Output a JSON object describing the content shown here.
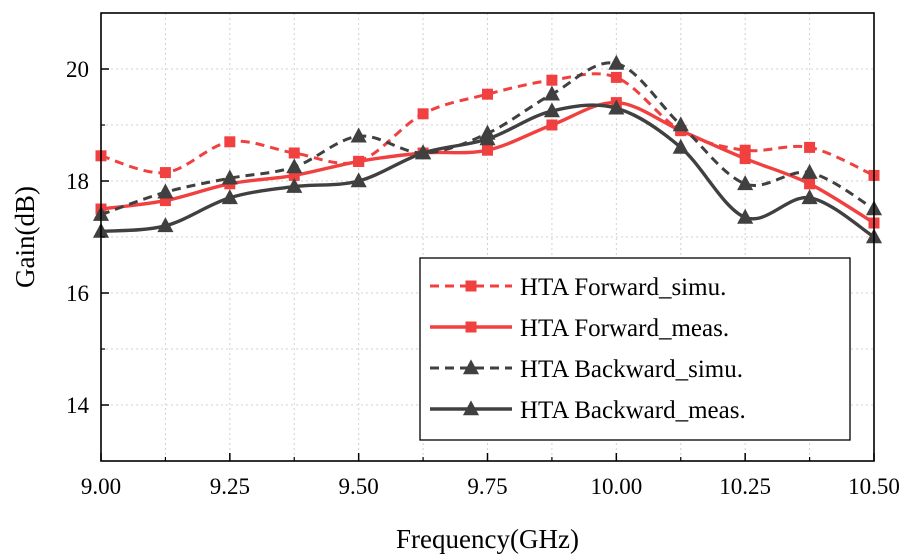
{
  "chart_data": {
    "type": "line",
    "xlabel": "Frequency(GHz)",
    "ylabel": "Gain(dB)",
    "xlim": [
      9.0,
      10.5
    ],
    "ylim": [
      13,
      21
    ],
    "x_ticks": [
      "9.00",
      "9.25",
      "9.50",
      "9.75",
      "10.00",
      "10.25",
      "10.50"
    ],
    "y_ticks": [
      "14",
      "16",
      "18",
      "20"
    ],
    "grid": true,
    "legend_position": "bottom-right",
    "x": [
      9.0,
      9.125,
      9.25,
      9.375,
      9.5,
      9.625,
      9.75,
      9.875,
      10.0,
      10.125,
      10.25,
      10.375,
      10.5
    ],
    "series": [
      {
        "name": "HTA Forward_simu.",
        "color": "#f04040",
        "dash": "dashed",
        "marker": "square",
        "values": [
          18.45,
          18.15,
          18.7,
          18.5,
          18.35,
          19.2,
          19.55,
          19.8,
          19.85,
          18.9,
          18.55,
          18.6,
          18.1
        ]
      },
      {
        "name": "HTA Forward_meas.",
        "color": "#f04040",
        "dash": "solid",
        "marker": "square",
        "values": [
          17.5,
          17.65,
          17.95,
          18.1,
          18.35,
          18.5,
          18.55,
          19.0,
          19.4,
          18.9,
          18.4,
          17.95,
          17.25
        ]
      },
      {
        "name": "HTA Backward_simu.",
        "color": "#404040",
        "dash": "dashed",
        "marker": "triangle",
        "values": [
          17.4,
          17.8,
          18.05,
          18.25,
          18.8,
          18.5,
          18.85,
          19.55,
          20.1,
          19.0,
          17.95,
          18.15,
          17.5
        ]
      },
      {
        "name": "HTA Backward_meas.",
        "color": "#404040",
        "dash": "solid",
        "marker": "triangle",
        "values": [
          17.1,
          17.2,
          17.7,
          17.9,
          18.0,
          18.5,
          18.75,
          19.25,
          19.3,
          18.6,
          17.35,
          17.7,
          17.0
        ]
      }
    ]
  }
}
